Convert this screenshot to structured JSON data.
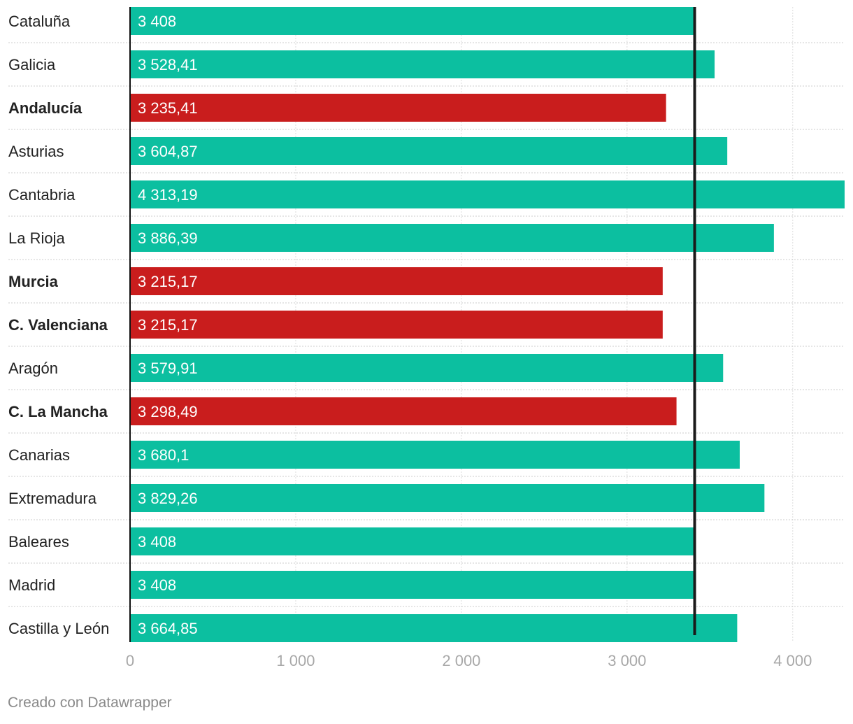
{
  "chart_data": {
    "type": "bar",
    "orientation": "horizontal",
    "categories": [
      "Cataluña",
      "Galicia",
      "Andalucía",
      "Asturias",
      "Cantabria",
      "La Rioja",
      "Murcia",
      "C. Valenciana",
      "Aragón",
      "C. La Mancha",
      "Canarias",
      "Extremadura",
      "Baleares",
      "Madrid",
      "Castilla y León"
    ],
    "values": [
      3408,
      3528.41,
      3235.41,
      3604.87,
      4313.19,
      3886.39,
      3215.17,
      3215.17,
      3579.91,
      3298.49,
      3680.1,
      3829.26,
      3408,
      3408,
      3664.85
    ],
    "value_labels": [
      "3 408",
      "3 528,41",
      "3 235,41",
      "3 604,87",
      "4 313,19",
      "3 886,39",
      "3 215,17",
      "3 215,17",
      "3 579,91",
      "3 298,49",
      "3 680,1",
      "3 829,26",
      "3 408",
      "3 408",
      "3 664,85"
    ],
    "highlighted": [
      false,
      false,
      true,
      false,
      false,
      false,
      true,
      true,
      false,
      true,
      false,
      false,
      false,
      false,
      false
    ],
    "reference_value": 3408,
    "xlim": [
      0,
      4313.19
    ],
    "x_ticks": [
      0,
      1000,
      2000,
      3000,
      4000
    ],
    "x_tick_labels": [
      "0",
      "1 000",
      "2 000",
      "3 000",
      "4 000"
    ],
    "grid": true,
    "title": "",
    "xlabel": "",
    "ylabel": ""
  },
  "colors": {
    "bar": "#0cbfa0",
    "highlight": "#c91d1d",
    "reference_line": "#1a1a1a",
    "grid": "#dddddd",
    "tick_label": "#a8a8a8",
    "category_label": "#222222",
    "value_label": "#ffffff"
  },
  "footer": {
    "credit": "Creado con Datawrapper"
  }
}
